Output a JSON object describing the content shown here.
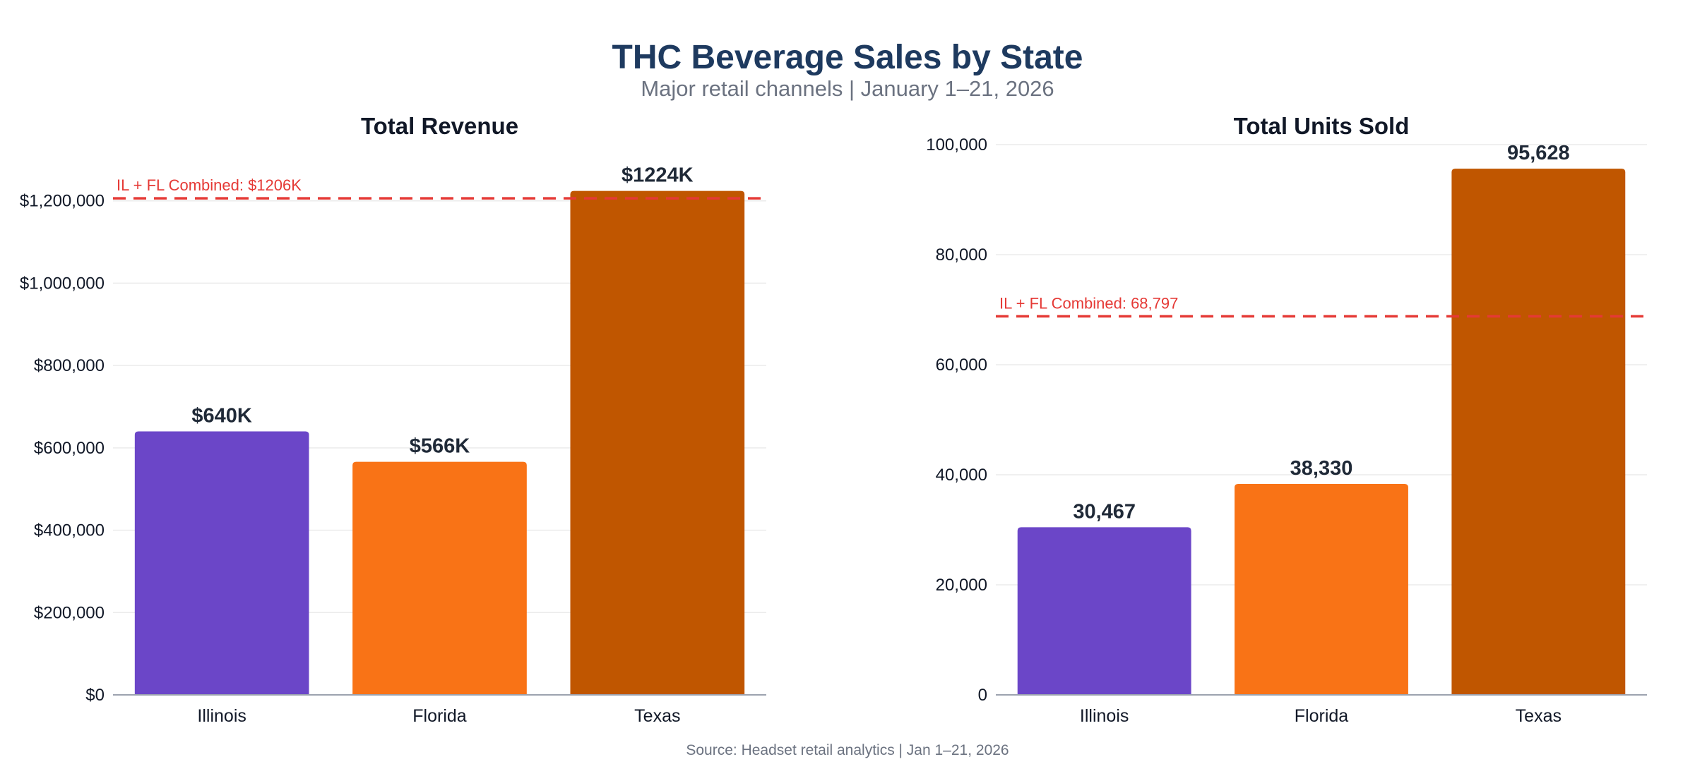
{
  "title": "THC Beverage Sales by State",
  "subtitle": "Major retail channels | January 1–21, 2026",
  "source": "Source: Headset retail analytics | Jan 1–21, 2026",
  "colors": {
    "Illinois": "#6b46c8",
    "Florida": "#f97316",
    "Texas": "#c05600",
    "reference_line": "#e53935",
    "grid": "#ebebeb",
    "axis": "#9ca3af"
  },
  "chart_data": [
    {
      "type": "bar",
      "title": "Total Revenue",
      "categories": [
        "Illinois",
        "Florida",
        "Texas"
      ],
      "values": [
        640000,
        566000,
        1224000
      ],
      "data_labels": [
        "$640K",
        "$566K",
        "$1224K"
      ],
      "ylim": [
        0,
        1280000
      ],
      "yticks": [
        0,
        200000,
        400000,
        600000,
        800000,
        1000000,
        1200000
      ],
      "ytick_labels": [
        "$0",
        "$200,000",
        "$400,000",
        "$600,000",
        "$800,000",
        "$1,000,000",
        "$1,200,000"
      ],
      "reference_line": {
        "value": 1206000,
        "label": "IL + FL Combined: $1206K"
      },
      "xlabel": "",
      "ylabel": "",
      "grid": "horizontal"
    },
    {
      "type": "bar",
      "title": "Total Units Sold",
      "categories": [
        "Illinois",
        "Florida",
        "Texas"
      ],
      "values": [
        30467,
        38330,
        95628
      ],
      "data_labels": [
        "30,467",
        "38,330",
        "95,628"
      ],
      "ylim": [
        0,
        100000
      ],
      "yticks": [
        0,
        20000,
        40000,
        60000,
        80000,
        100000
      ],
      "ytick_labels": [
        "0",
        "20,000",
        "40,000",
        "60,000",
        "80,000",
        "100,000"
      ],
      "reference_line": {
        "value": 68797,
        "label": "IL + FL Combined: 68,797"
      },
      "xlabel": "",
      "ylabel": "",
      "grid": "horizontal"
    }
  ]
}
